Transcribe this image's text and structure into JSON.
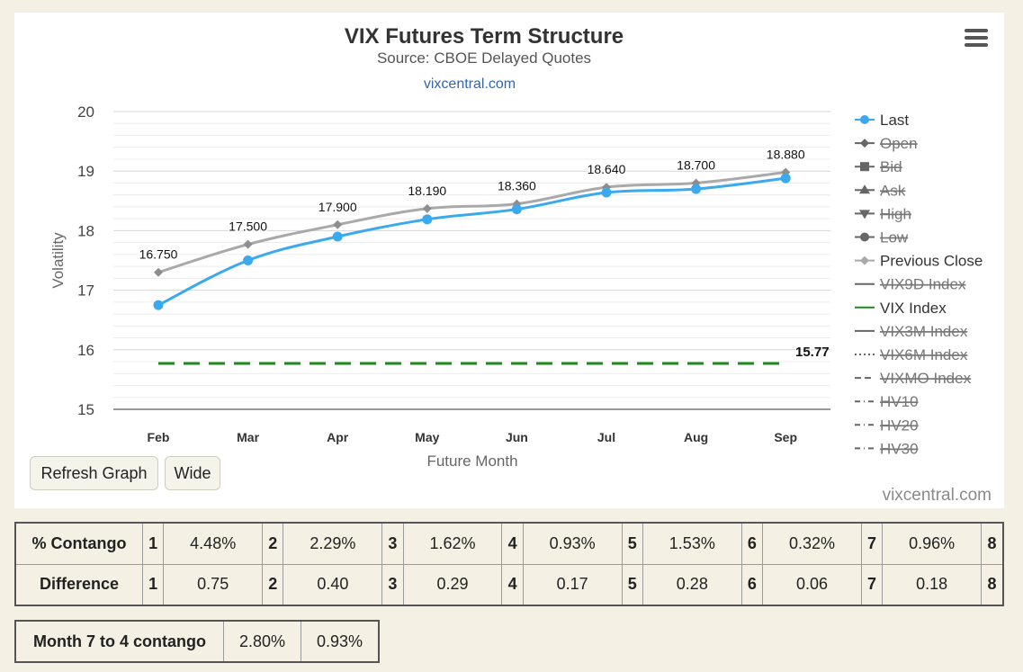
{
  "chart_data": {
    "type": "line",
    "title": "VIX Futures Term Structure",
    "subtitle": "Source: CBOE Delayed Quotes",
    "credit_link": "vixcentral.com",
    "xlabel": "Future Month",
    "ylabel": "Volatility",
    "ylim": [
      15,
      20
    ],
    "yticks": [
      15,
      16,
      17,
      18,
      19,
      20
    ],
    "grid": true,
    "categories": [
      "Feb",
      "Mar",
      "Apr",
      "May",
      "Jun",
      "Jul",
      "Aug",
      "Sep"
    ],
    "series": [
      {
        "name": "Last",
        "color": "#3aa9ee",
        "values": [
          16.75,
          17.5,
          17.9,
          18.19,
          18.36,
          18.64,
          18.7,
          18.88
        ],
        "labels": [
          "16.750",
          "17.500",
          "17.900",
          "18.190",
          "18.360",
          "18.640",
          "18.700",
          "18.880"
        ]
      },
      {
        "name": "Previous Close",
        "color": "#a9a9a9",
        "values": [
          17.3,
          17.77,
          18.1,
          18.37,
          18.45,
          18.73,
          18.8,
          18.98
        ]
      },
      {
        "name": "VIX Index",
        "color": "#1e8a1e",
        "dashed": true,
        "values": [
          15.77,
          15.77,
          15.77,
          15.77,
          15.77,
          15.77,
          15.77,
          15.77
        ],
        "end_label": "15.77"
      }
    ],
    "legend": {
      "position": "right",
      "items": [
        {
          "label": "Last",
          "symbol": "circle",
          "color": "#3aa9ee",
          "hidden": false
        },
        {
          "label": "Open",
          "symbol": "diamond",
          "color": "#555555",
          "hidden": true
        },
        {
          "label": "Bid",
          "symbol": "square",
          "color": "#555555",
          "hidden": true
        },
        {
          "label": "Ask",
          "symbol": "triangle",
          "color": "#555555",
          "hidden": true
        },
        {
          "label": "High",
          "symbol": "triangle-down",
          "color": "#555555",
          "hidden": true
        },
        {
          "label": "Low",
          "symbol": "circle",
          "color": "#555555",
          "hidden": true
        },
        {
          "label": "Previous Close",
          "symbol": "diamond",
          "color": "#a9a9a9",
          "hidden": false
        },
        {
          "label": "VIX9D Index",
          "symbol": "line",
          "color": "#666666",
          "hidden": true
        },
        {
          "label": "VIX Index",
          "symbol": "line",
          "color": "#1e8a1e",
          "hidden": false
        },
        {
          "label": "VIX3M Index",
          "symbol": "line",
          "color": "#666666",
          "hidden": true
        },
        {
          "label": "VIX6M Index",
          "symbol": "dotted",
          "color": "#666666",
          "hidden": true
        },
        {
          "label": "VIXMO Index",
          "symbol": "dashed",
          "color": "#666666",
          "hidden": true
        },
        {
          "label": "HV10",
          "symbol": "dashdot",
          "color": "#666666",
          "hidden": true
        },
        {
          "label": "HV20",
          "symbol": "dashdot",
          "color": "#666666",
          "hidden": true
        },
        {
          "label": "HV30",
          "symbol": "dashdot",
          "color": "#666666",
          "hidden": true
        }
      ]
    }
  },
  "buttons": {
    "refresh": "Refresh Graph",
    "wide": "Wide"
  },
  "watermark": "vixcentral.com",
  "stats": {
    "contango": {
      "label": "% Contango",
      "cells": [
        [
          "1",
          "4.48%"
        ],
        [
          "2",
          "2.29%"
        ],
        [
          "3",
          "1.62%"
        ],
        [
          "4",
          "0.93%"
        ],
        [
          "5",
          "1.53%"
        ],
        [
          "6",
          "0.32%"
        ],
        [
          "7",
          "0.96%"
        ]
      ],
      "last": "8"
    },
    "difference": {
      "label": "Difference",
      "cells": [
        [
          "1",
          "0.75"
        ],
        [
          "2",
          "0.40"
        ],
        [
          "3",
          "0.29"
        ],
        [
          "4",
          "0.17"
        ],
        [
          "5",
          "0.28"
        ],
        [
          "6",
          "0.06"
        ],
        [
          "7",
          "0.18"
        ]
      ],
      "last": "8"
    }
  },
  "month_contango": {
    "label": "Month 7 to 4 contango",
    "values": [
      "2.80%",
      "0.93%"
    ]
  },
  "colors": {
    "background": "#f4f0e3",
    "panel": "#ffffff",
    "last_series": "#3aa9ee",
    "previous_close": "#a9a9a9",
    "vix_index": "#1e8a1e"
  },
  "icons": {
    "menu": "hamburger-menu-icon"
  }
}
